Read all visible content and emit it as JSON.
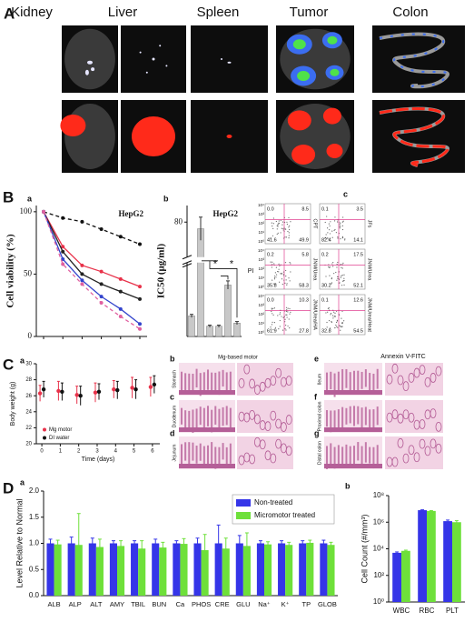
{
  "panel_labels": [
    "A",
    "B",
    "C",
    "D"
  ],
  "panel_a": {
    "organs": [
      "Kidney",
      "Liver",
      "Spleen",
      "Tumor",
      "Colon"
    ]
  },
  "panel_b": {
    "sub_labels": [
      "a",
      "b",
      "c"
    ],
    "flow": {
      "y_label": "PI",
      "x_label": "Annexin V-FITC",
      "ticks": [
        "10⁰",
        "10¹",
        "10²",
        "10³",
        "10⁴"
      ],
      "plots": [
        {
          "label": "CPT",
          "quadrants": [
            "0.0",
            "8.5",
            "41.6",
            "49.9"
          ]
        },
        {
          "label": "JFs",
          "quadrants": [
            "0.1",
            "3.5",
            "82.4",
            "14.1"
          ]
        },
        {
          "label": "JNM/Urea",
          "quadrants": [
            "0.2",
            "5.8",
            "35.8",
            "58.3"
          ]
        },
        {
          "label": "JNM/Urea",
          "quadrants": [
            "0.2",
            "17.5",
            "30.2",
            "52.1"
          ]
        },
        {
          "label": "JNM/Urea/HA",
          "quadrants": [
            "0.0",
            "10.3",
            "61.9",
            "27.8"
          ]
        },
        {
          "label": "JNM/Urea/Heat",
          "quadrants": [
            "0.1",
            "12.6",
            "32.8",
            "54.5"
          ]
        }
      ]
    }
  },
  "panel_c": {
    "sub_labels": [
      "a",
      "b",
      "c",
      "d",
      "e",
      "f",
      "g"
    ],
    "histology_title": "Mg-based motor",
    "tissues": [
      "Stomach",
      "Duodenum",
      "Jejunum",
      "Ileum",
      "Proximal colon",
      "Distal colon"
    ]
  },
  "panel_d": {
    "sub_labels": [
      "a",
      "b"
    ]
  },
  "chart_data": [
    {
      "type": "line",
      "title": "HepG2",
      "y_label": "Cell viability (%)",
      "categories": [
        null,
        null,
        null,
        null,
        null,
        null
      ],
      "series": [
        {
          "color": "#111111",
          "dashed": true,
          "values": [
            100,
            95,
            92,
            86,
            80,
            74
          ]
        },
        {
          "color": "#e8324a",
          "dashed": false,
          "values": [
            100,
            72,
            57,
            52,
            46,
            40
          ]
        },
        {
          "color": "#222222",
          "dashed": false,
          "values": [
            100,
            68,
            50,
            42,
            36,
            30
          ]
        },
        {
          "color": "#3344cc",
          "dashed": false,
          "values": [
            100,
            62,
            45,
            32,
            22,
            10
          ]
        },
        {
          "color": "#e060a0",
          "dashed": true,
          "values": [
            100,
            58,
            42,
            27,
            16,
            6
          ]
        }
      ],
      "ylim": [
        0,
        105
      ],
      "yticks": [
        0,
        50,
        100
      ]
    },
    {
      "type": "bar",
      "title": "HepG2",
      "y_label": "IC50 (μg/ml)",
      "categories": [
        null,
        null,
        null,
        null,
        null,
        null
      ],
      "values": [
        2,
        76,
        1,
        1,
        5,
        1.3
      ],
      "errors": [
        0.15,
        7,
        0.1,
        0.1,
        0.4,
        0.15
      ],
      "color": "#c8c8c8",
      "ylim": [
        0,
        90
      ],
      "yticks": [
        80
      ],
      "ybreak": [
        7,
        60
      ],
      "annotations": [
        "*",
        "*"
      ]
    },
    {
      "type": "scatter",
      "x_label": "Time (days)",
      "y_label": "Body weight (g)",
      "x": [
        0,
        1,
        2,
        3,
        4,
        5,
        6
      ],
      "series": [
        {
          "name": "Mg motor",
          "color": "#e8324a",
          "values": [
            26.3,
            26.6,
            26.1,
            26.4,
            26.8,
            27.0,
            27.1
          ],
          "errors": [
            1.0,
            1.2,
            1.1,
            1.2,
            1.1,
            1.3,
            1.2
          ]
        },
        {
          "name": "DI water",
          "color": "#111111",
          "values": [
            26.8,
            26.5,
            26.0,
            26.5,
            26.7,
            26.8,
            27.4
          ],
          "errors": [
            1.0,
            1.1,
            1.2,
            1.0,
            1.1,
            1.2,
            1.1
          ]
        }
      ],
      "xlim": [
        -0.3,
        6.4
      ],
      "xticks": [
        0,
        1,
        2,
        3,
        4,
        5,
        6
      ],
      "ylim": [
        20,
        30
      ],
      "yticks": [
        20,
        22,
        24,
        26,
        28,
        30
      ],
      "legend": "lower left"
    },
    {
      "type": "bar",
      "y_label": "Level Relative to Normal",
      "categories": [
        "ALB",
        "ALP",
        "ALT",
        "AMY",
        "TBIL",
        "BUN",
        "Ca",
        "PHOS",
        "CRE",
        "GLU",
        "Na⁺",
        "K⁺",
        "TP",
        "GLOB"
      ],
      "series": [
        {
          "name": "Non-treated",
          "color": "#3535e8",
          "values": [
            1,
            1,
            1,
            1,
            1,
            1,
            1,
            1,
            1,
            1,
            1,
            1,
            1,
            1
          ],
          "errors": [
            0.08,
            0.12,
            0.1,
            0.05,
            0.05,
            0.08,
            0.05,
            0.1,
            0.35,
            0.15,
            0.05,
            0.05,
            0.05,
            0.06
          ]
        },
        {
          "name": "Micromotor treated",
          "color": "#6ee03a",
          "values": [
            0.98,
            0.97,
            0.93,
            0.95,
            0.9,
            0.92,
            0.99,
            0.87,
            0.9,
            0.95,
            0.98,
            0.97,
            1.01,
            0.97
          ],
          "errors": [
            0.08,
            0.6,
            0.15,
            0.1,
            0.15,
            0.1,
            0.1,
            0.3,
            0.2,
            0.25,
            0.05,
            0.05,
            0.05,
            0.05
          ]
        }
      ],
      "ylim": [
        0,
        2
      ],
      "yticks": [
        {
          "value": 0,
          "label": "0.0"
        },
        {
          "value": 0.5,
          "label": "0.5"
        },
        {
          "value": 1,
          "label": "1.0"
        },
        {
          "value": 1.5,
          "label": "1.5"
        },
        {
          "value": 2,
          "label": "2.0"
        }
      ],
      "legend": "upper right"
    },
    {
      "type": "bar",
      "y_label": "Cell Count (#/mm³)",
      "log_scale": true,
      "categories": [
        "WBC",
        "RBC",
        "PLT"
      ],
      "series": [
        {
          "color": "#3535e8",
          "values": [
            5000,
            8000000,
            1200000
          ],
          "errors": [
            800,
            600000,
            250000
          ]
        },
        {
          "color": "#6ee03a",
          "values": [
            7000,
            7000000,
            1000000
          ],
          "errors": [
            900,
            500000,
            300000
          ]
        }
      ],
      "ylim": [
        1,
        100000000
      ],
      "yticks": [
        {
          "value": 1,
          "label": "10⁰"
        },
        {
          "value": 100,
          "label": "10²"
        },
        {
          "value": 10000,
          "label": "10⁴"
        },
        {
          "value": 1000000,
          "label": "10⁶"
        },
        {
          "value": 100000000,
          "label": "10⁸"
        }
      ]
    }
  ]
}
